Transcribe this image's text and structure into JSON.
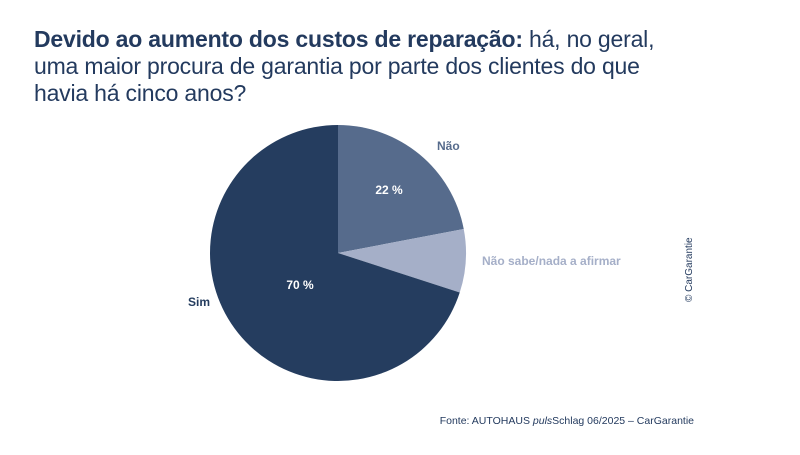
{
  "title": {
    "bold": "Devido ao aumento dos custos de reparação:",
    "rest": "há, no geral, uma maior procura de garantia por parte dos clientes do que havia há cinco anos?"
  },
  "chart_data": {
    "type": "pie",
    "slices": [
      {
        "label": "Não",
        "value": 22,
        "value_label": "22 %",
        "color": "#566b8c",
        "label_color": "#566b8c"
      },
      {
        "label": "Não sabe/nada a afirmar",
        "value": 8,
        "value_label": "",
        "color": "#a5afc8",
        "label_color": "#a5afc8"
      },
      {
        "label": "Sim",
        "value": 70,
        "value_label": "70 %",
        "color": "#253d5f",
        "label_color": "#253d5f"
      }
    ]
  },
  "copyright": "© CarGarantie",
  "source": {
    "prefix": "Fonte: AUTOHAUS ",
    "italic": "puls",
    "suffix": "Schlag 06/2025 – CarGarantie"
  }
}
